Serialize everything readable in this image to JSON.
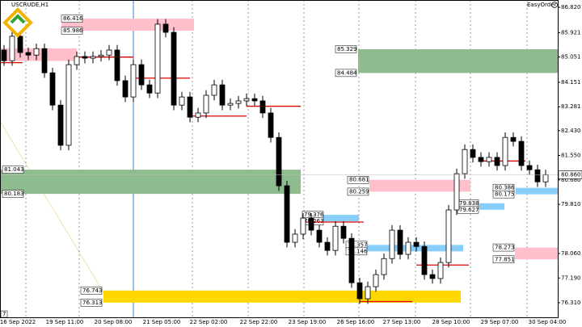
{
  "chart_data": {
    "type": "candlestick",
    "title": "USCRUDE,H1",
    "indicator_label": "EasyOrder",
    "corner_label": "7",
    "open": [
      85.3,
      84.92,
      85.79,
      85.21,
      85.12,
      85.35,
      84.49,
      83.34,
      81.91,
      84.78,
      85.07,
      85.01,
      85.07,
      85.12,
      85.3,
      84.21,
      83.63,
      84.78,
      84.06,
      83.77,
      86.22,
      85.93,
      83.34,
      83.63,
      82.91,
      83.06,
      83.69,
      84.06,
      83.34,
      83.4,
      83.49,
      83.57,
      83.49,
      83.06,
      82.19,
      80.47,
      78.46,
      78.75,
      79.32,
      78.89,
      78.46,
      78.17,
      79.03,
      78.6,
      77.02,
      76.45,
      76.88,
      77.31,
      77.88,
      78.89,
      78.03,
      78.46,
      78.31,
      77.31,
      77.17,
      77.74,
      79.61,
      80.9,
      81.76,
      81.48,
      81.33,
      81.48,
      81.19,
      82.19,
      82.05,
      81.19,
      81.04,
      80.61
    ],
    "high": [
      85.48,
      85.97,
      85.97,
      85.39,
      85.53,
      85.53,
      84.67,
      83.52,
      84.96,
      85.25,
      85.25,
      85.25,
      85.3,
      85.48,
      85.48,
      84.39,
      84.96,
      84.96,
      84.24,
      86.4,
      86.4,
      86.11,
      83.81,
      83.81,
      83.24,
      83.87,
      84.24,
      84.24,
      83.58,
      83.67,
      83.75,
      83.75,
      83.67,
      83.24,
      82.37,
      80.65,
      78.93,
      79.5,
      79.5,
      79.07,
      78.64,
      79.21,
      79.21,
      78.78,
      77.2,
      77.06,
      77.49,
      78.06,
      79.07,
      79.07,
      78.64,
      78.64,
      78.49,
      77.49,
      77.92,
      79.79,
      81.08,
      81.94,
      81.94,
      81.66,
      81.66,
      81.66,
      82.37,
      82.37,
      82.23,
      81.37,
      81.22,
      81.04
    ],
    "low": [
      84.74,
      84.74,
      85.03,
      84.94,
      84.94,
      84.31,
      83.16,
      81.73,
      81.73,
      84.6,
      84.83,
      84.83,
      84.89,
      84.94,
      84.03,
      83.45,
      83.45,
      83.88,
      83.59,
      83.59,
      85.75,
      83.16,
      83.16,
      82.73,
      82.73,
      82.88,
      83.51,
      83.16,
      83.16,
      83.22,
      83.31,
      83.31,
      82.88,
      82.01,
      80.29,
      78.28,
      78.28,
      78.57,
      78.71,
      78.28,
      77.99,
      77.99,
      78.42,
      76.84,
      76.27,
      76.27,
      76.7,
      77.13,
      77.7,
      77.85,
      77.85,
      78.13,
      77.13,
      76.99,
      76.99,
      77.56,
      79.43,
      80.72,
      81.3,
      81.15,
      81.15,
      81.01,
      81.01,
      81.87,
      81.01,
      80.86,
      80.43,
      80.43
    ],
    "close": [
      84.92,
      85.79,
      85.21,
      85.12,
      85.35,
      84.49,
      83.34,
      81.91,
      84.78,
      85.07,
      85.01,
      85.07,
      85.12,
      85.3,
      84.21,
      83.63,
      84.78,
      84.06,
      83.77,
      86.22,
      85.93,
      83.34,
      83.63,
      82.91,
      83.06,
      83.69,
      84.06,
      83.34,
      83.4,
      83.49,
      83.57,
      83.49,
      83.06,
      82.19,
      80.47,
      78.46,
      78.75,
      79.32,
      78.89,
      78.46,
      78.17,
      79.03,
      78.6,
      77.02,
      76.45,
      76.88,
      77.31,
      77.88,
      78.89,
      78.03,
      78.46,
      78.31,
      77.31,
      77.17,
      77.74,
      79.61,
      80.9,
      81.76,
      81.48,
      81.33,
      81.48,
      81.19,
      82.19,
      82.05,
      81.19,
      81.04,
      80.61,
      80.86
    ],
    "x_labels": [
      "16 Sep 2022",
      "19 Sep 11:00",
      "20 Sep 08:00",
      "21 Sep 05:00",
      "22 Sep 02:00",
      "22 Sep 22:00",
      "23 Sep 19:00",
      "26 Sep 16:00",
      "27 Sep 13:00",
      "28 Sep 10:00",
      "29 Sep 07:00",
      "30 Sep 04:00"
    ],
    "ylim": [
      75.79,
      87.08
    ],
    "yticks": [
      {
        "value": 86.82,
        "label": "86.820"
      },
      85.921,
      85.051,
      84.151,
      83.281,
      {
        "value": 82.43,
        "label": "82.430"
      },
      {
        "value": 81.55,
        "label": "81.550"
      },
      {
        "value": 80.68,
        "label": "80.680"
      },
      {
        "value": 79.81,
        "label": "79.810"
      },
      {
        "value": 78.06,
        "label": "78.060"
      },
      {
        "value": 77.19,
        "label": "77.190"
      },
      {
        "value": 76.31,
        "label": "76.310"
      }
    ],
    "current_price": {
      "value": 80.86,
      "label": "80.860"
    },
    "zones": [
      {
        "top": 86.416,
        "bottom": 85.986,
        "color": "#ffc0cb"
      },
      {
        "top": 85.36,
        "bottom": 84.91,
        "color": "#ffc0cb"
      },
      {
        "top": 85.329,
        "bottom": 84.484,
        "color": "#8fbc8f"
      },
      {
        "top": 81.043,
        "bottom": 80.183,
        "color": "#8fbc8f"
      },
      {
        "top": 76.743,
        "bottom": 76.313,
        "color": "#ffd700"
      },
      {
        "top": 80.681,
        "bottom": 80.259,
        "color": "#ffc0cb"
      },
      {
        "top": 79.376,
        "bottom": 79.263,
        "color": "#87cefa"
      },
      {
        "top": 78.357,
        "bottom": 78.146,
        "color": "#87cefa"
      },
      {
        "top": 79.838,
        "bottom": 79.627,
        "color": "#87cefa"
      },
      {
        "top": 80.386,
        "bottom": 80.175,
        "color": "#87cefa"
      },
      {
        "top": 78.273,
        "bottom": 77.851,
        "color": "#ffc0cb"
      }
    ],
    "levels": [
      84.85,
      85.05,
      84.3,
      82.95,
      83.3,
      79.18,
      76.35,
      77.65,
      81.35
    ],
    "level_color": "#dd0000"
  }
}
